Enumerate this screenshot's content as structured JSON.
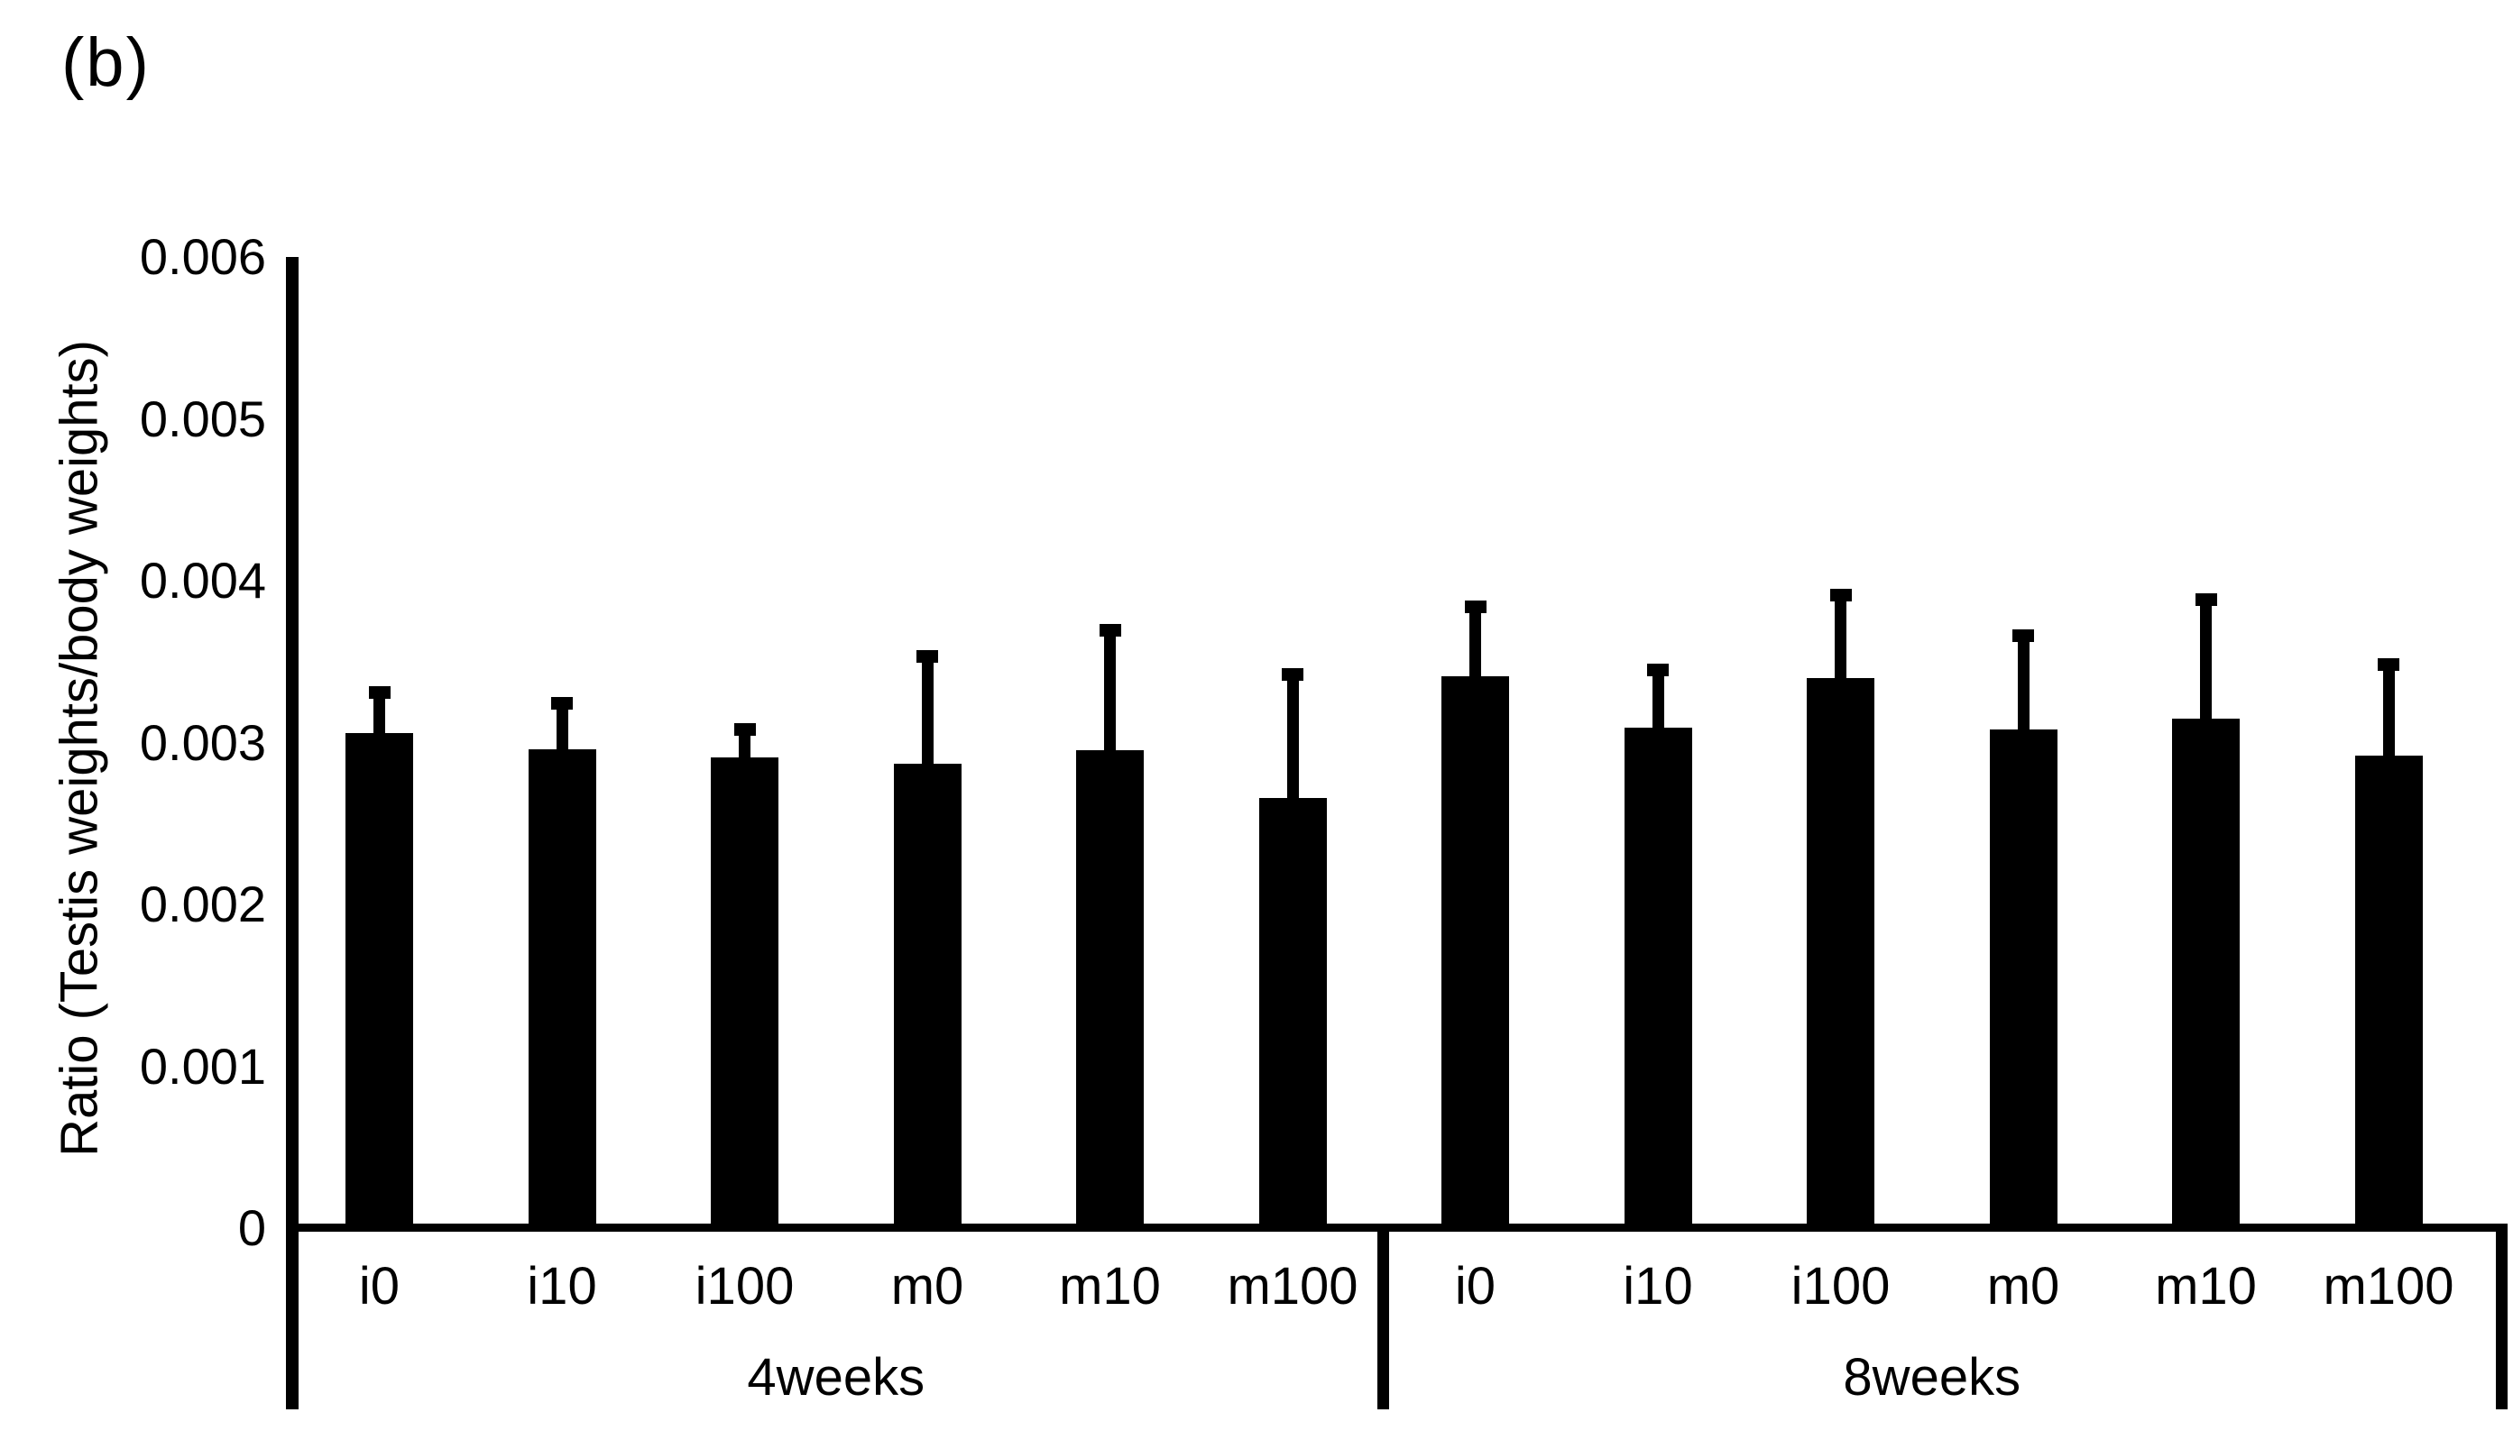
{
  "chart_data": {
    "type": "bar",
    "panel_label": "(b)",
    "title": "",
    "ylabel": "Ratio (Testis weights/body weights)",
    "xlabel": "",
    "ylim": [
      0,
      0.006
    ],
    "ytick_labels": [
      "0",
      "0.001",
      "0.002",
      "0.003",
      "0.004",
      "0.005",
      "0.006"
    ],
    "ytick_values": [
      0,
      0.001,
      0.002,
      0.003,
      0.004,
      0.005,
      0.006
    ],
    "grid": false,
    "legend": null,
    "bar_color": "#000000",
    "error_bar_direction": "upper-only",
    "groups": [
      {
        "label": "4weeks",
        "categories": [
          "i0",
          "i10",
          "i100",
          "m0",
          "m10",
          "m100"
        ],
        "means": [
          0.00306,
          0.00296,
          0.00291,
          0.00287,
          0.00295,
          0.00266
        ],
        "error_upper": [
          0.00029,
          0.00032,
          0.00021,
          0.0007,
          0.00078,
          0.0008
        ]
      },
      {
        "label": "8weeks",
        "categories": [
          "i0",
          "i10",
          "i100",
          "m0",
          "m10",
          "m100"
        ],
        "means": [
          0.00341,
          0.00309,
          0.0034,
          0.00308,
          0.00315,
          0.00292
        ],
        "error_upper": [
          0.00047,
          0.0004,
          0.00055,
          0.00062,
          0.00077,
          0.0006
        ]
      }
    ]
  }
}
